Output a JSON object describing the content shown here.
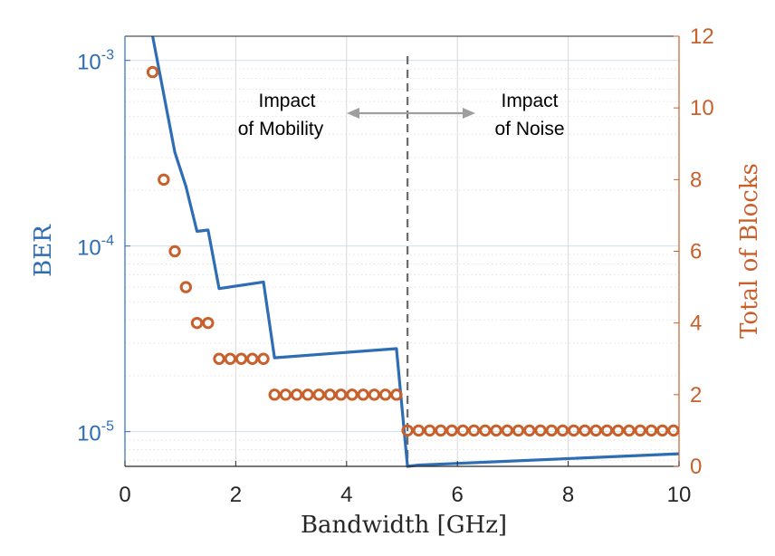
{
  "chart_data": {
    "type": "line",
    "xlabel": "Bandwidth [GHz]",
    "ylabel_left": "BER",
    "ylabel_right": "Total of Blocks",
    "xlim": [
      0,
      10
    ],
    "ylim_left": [
      6.5e-06,
      0.00135
    ],
    "ylim_right": [
      0,
      12
    ],
    "yscale_left": "log",
    "grid": true,
    "x_ticks": [
      "0",
      "2",
      "4",
      "6",
      "8",
      "10"
    ],
    "x_tick_values": [
      0,
      2,
      4,
      6,
      8,
      10
    ],
    "left_ticks": [
      {
        "base": "10",
        "exp": "-3",
        "value": 0.001
      },
      {
        "base": "10",
        "exp": "-4",
        "value": 0.0001
      },
      {
        "base": "10",
        "exp": "-5",
        "value": 1e-05
      }
    ],
    "right_ticks": [
      "0",
      "2",
      "4",
      "6",
      "8",
      "10",
      "12"
    ],
    "right_tick_values": [
      0,
      2,
      4,
      6,
      8,
      10,
      12
    ],
    "colors": {
      "ber": "#2e6db4",
      "blocks": "#c8602c",
      "grid": "#d9d9d9",
      "divider": "#6b6b6b"
    },
    "ber_series": {
      "axis": "left",
      "x": [
        0.5,
        0.9,
        1.1,
        1.3,
        1.5,
        1.7,
        2.5,
        2.7,
        4.9,
        5.1,
        5.3,
        10.0
      ],
      "y": [
        0.00135,
        0.00032,
        0.00021,
        0.00012,
        0.000122,
        5.9e-05,
        6.4e-05,
        2.5e-05,
        2.8e-05,
        6.5e-06,
        6.6e-06,
        7.6e-06
      ]
    },
    "blocks_series": {
      "axis": "right",
      "x": [
        0.5,
        0.7,
        0.9,
        1.1,
        1.3,
        1.5,
        1.7,
        1.9,
        2.1,
        2.3,
        2.5,
        2.7,
        2.9,
        3.1,
        3.3,
        3.5,
        3.7,
        3.9,
        4.1,
        4.3,
        4.5,
        4.7,
        4.9,
        5.1,
        5.3,
        5.5,
        5.7,
        5.9,
        6.1,
        6.3,
        6.5,
        6.7,
        6.9,
        7.1,
        7.3,
        7.5,
        7.7,
        7.9,
        8.1,
        8.3,
        8.5,
        8.7,
        8.9,
        9.1,
        9.3,
        9.5,
        9.7,
        9.9
      ],
      "y": [
        11,
        8,
        6,
        5,
        4,
        4,
        3,
        3,
        3,
        3,
        3,
        2,
        2,
        2,
        2,
        2,
        2,
        2,
        2,
        2,
        2,
        2,
        2,
        1,
        1,
        1,
        1,
        1,
        1,
        1,
        1,
        1,
        1,
        1,
        1,
        1,
        1,
        1,
        1,
        1,
        1,
        1,
        1,
        1,
        1,
        1,
        1,
        1
      ]
    },
    "divider_x": 5.1,
    "annotations": {
      "left_line1": "Impact",
      "left_line2": "of Mobility",
      "right_line1": "Impact",
      "right_line2": "of Noise"
    }
  }
}
